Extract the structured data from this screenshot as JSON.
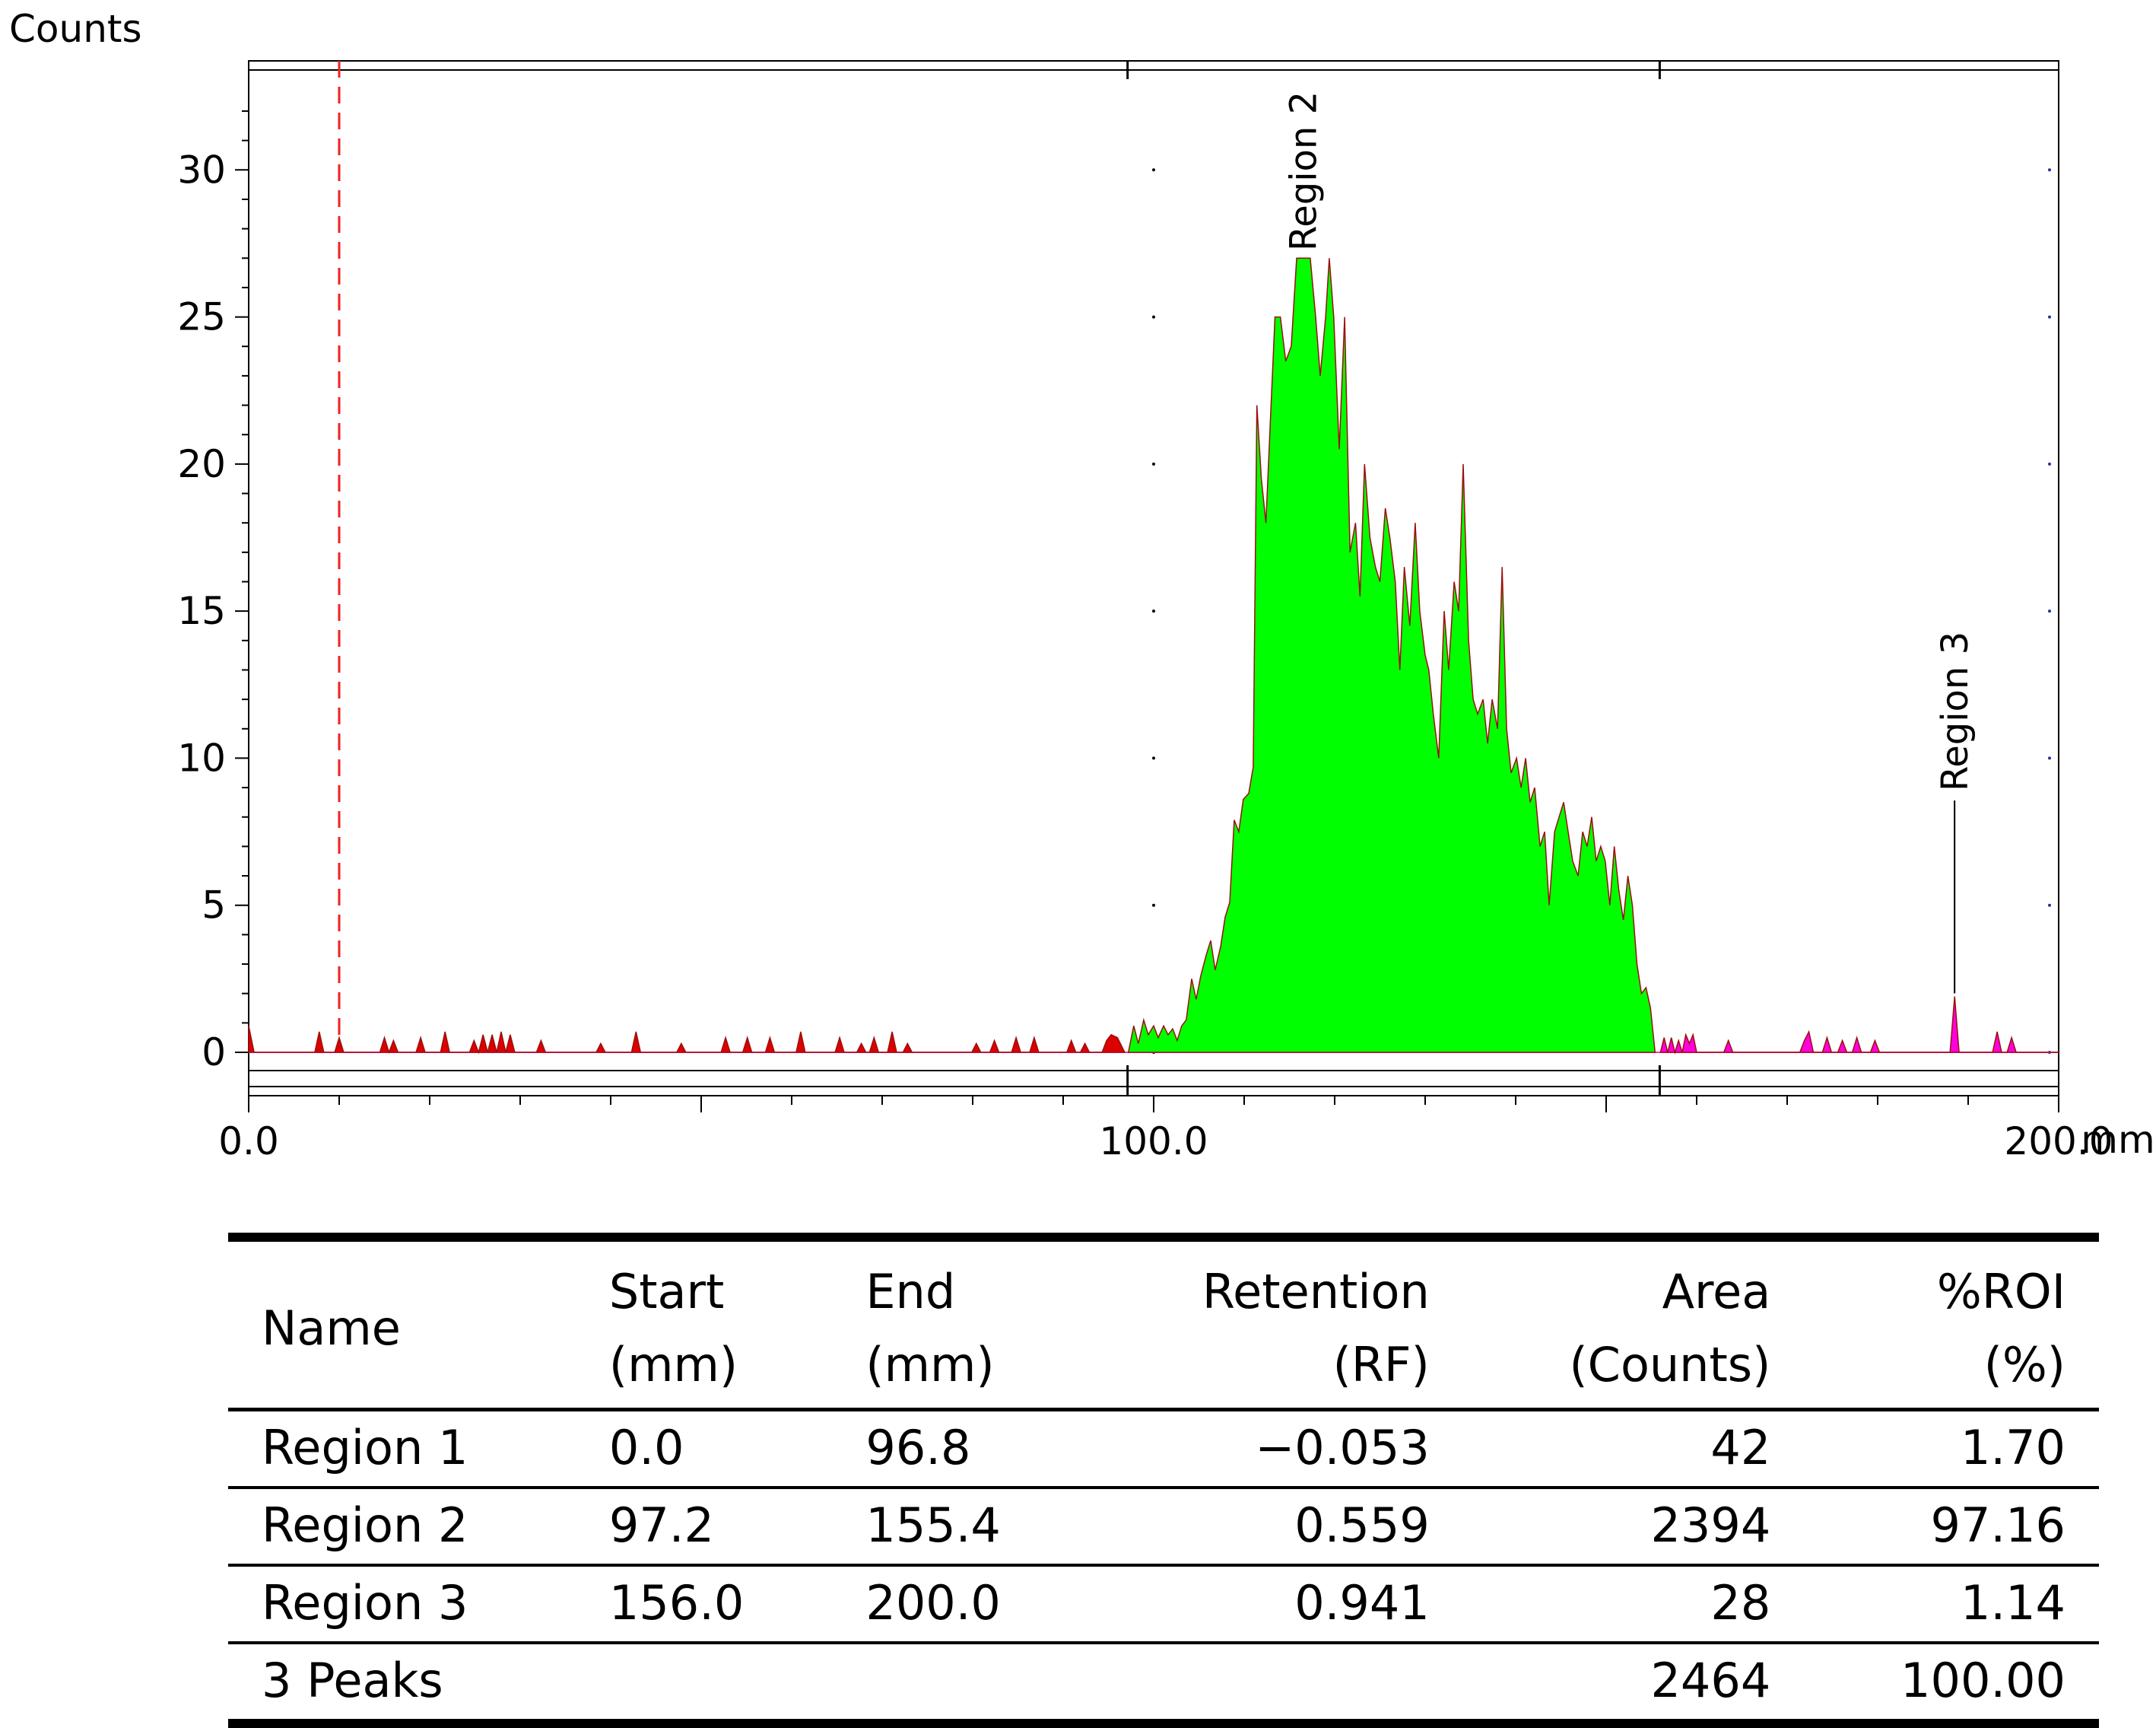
{
  "chart_data": {
    "type": "area",
    "ylabel": "Counts",
    "xunit": "mm",
    "xlim": [
      0,
      200
    ],
    "ylim": [
      0,
      33.5
    ],
    "x_ticks": [
      {
        "value": 0,
        "label": "0.0"
      },
      {
        "value": 100,
        "label": "100.0"
      },
      {
        "value": 200,
        "label": "200.0"
      }
    ],
    "y_ticks": [
      0,
      5,
      10,
      15,
      20,
      25,
      30
    ],
    "origin_marker_x": 10,
    "regions": [
      {
        "name": "Region 1",
        "start": 0.0,
        "end": 96.8,
        "color": "#dd0000",
        "label": ""
      },
      {
        "name": "Region 2",
        "start": 97.2,
        "end": 155.4,
        "color": "#00ff00",
        "label": "Region 2",
        "label_at": 116.5
      },
      {
        "name": "Region 3",
        "start": 156.0,
        "end": 200.0,
        "color": "#ff00dd",
        "label": "Region 3",
        "label_at": 188.5
      }
    ],
    "series": [
      {
        "region": "Region 1",
        "points": [
          [
            0,
            0.9
          ],
          [
            0.6,
            0
          ],
          [
            7.3,
            0
          ],
          [
            7.8,
            0.7
          ],
          [
            8.3,
            0
          ],
          [
            9.5,
            0
          ],
          [
            10,
            0.5
          ],
          [
            10.5,
            0
          ],
          [
            14.5,
            0
          ],
          [
            15,
            0.5
          ],
          [
            15.5,
            0
          ],
          [
            16,
            0.4
          ],
          [
            16.5,
            0
          ],
          [
            18.5,
            0
          ],
          [
            19,
            0.5
          ],
          [
            19.5,
            0
          ],
          [
            21.2,
            0
          ],
          [
            21.7,
            0.7
          ],
          [
            22.2,
            0
          ],
          [
            24.4,
            0
          ],
          [
            24.9,
            0.4
          ],
          [
            25.4,
            0
          ],
          [
            25.9,
            0.6
          ],
          [
            26.4,
            0
          ],
          [
            26.9,
            0.6
          ],
          [
            27.4,
            0
          ],
          [
            27.9,
            0.7
          ],
          [
            28.4,
            0
          ],
          [
            28.9,
            0.6
          ],
          [
            29.4,
            0
          ],
          [
            31.8,
            0
          ],
          [
            32.3,
            0.4
          ],
          [
            32.8,
            0
          ],
          [
            38.4,
            0
          ],
          [
            38.9,
            0.3
          ],
          [
            39.4,
            0
          ],
          [
            42.3,
            0
          ],
          [
            42.8,
            0.7
          ],
          [
            43.3,
            0
          ],
          [
            47.3,
            0
          ],
          [
            47.8,
            0.3
          ],
          [
            48.3,
            0
          ],
          [
            52.2,
            0
          ],
          [
            52.7,
            0.5
          ],
          [
            53.2,
            0
          ],
          [
            54.6,
            0
          ],
          [
            55.1,
            0.5
          ],
          [
            55.6,
            0
          ],
          [
            57.1,
            0
          ],
          [
            57.6,
            0.5
          ],
          [
            58.1,
            0
          ],
          [
            60.5,
            0
          ],
          [
            61,
            0.7
          ],
          [
            61.5,
            0
          ],
          [
            64.8,
            0
          ],
          [
            65.3,
            0.5
          ],
          [
            65.8,
            0
          ],
          [
            67.2,
            0
          ],
          [
            67.7,
            0.3
          ],
          [
            68.2,
            0
          ],
          [
            68.6,
            0
          ],
          [
            69.1,
            0.5
          ],
          [
            69.6,
            0
          ],
          [
            70.6,
            0
          ],
          [
            71.1,
            0.7
          ],
          [
            71.6,
            0
          ],
          [
            72.3,
            0
          ],
          [
            72.8,
            0.3
          ],
          [
            73.3,
            0
          ],
          [
            79.9,
            0
          ],
          [
            80.4,
            0.3
          ],
          [
            80.9,
            0
          ],
          [
            81.9,
            0
          ],
          [
            82.4,
            0.4
          ],
          [
            82.9,
            0
          ],
          [
            84.3,
            0
          ],
          [
            84.8,
            0.5
          ],
          [
            85.3,
            0
          ],
          [
            86.3,
            0
          ],
          [
            86.8,
            0.5
          ],
          [
            87.3,
            0
          ],
          [
            90.4,
            0
          ],
          [
            90.9,
            0.4
          ],
          [
            91.4,
            0
          ],
          [
            91.9,
            0
          ],
          [
            92.4,
            0.3
          ],
          [
            92.9,
            0
          ],
          [
            94.3,
            0
          ],
          [
            94.8,
            0.4
          ],
          [
            95.3,
            0.6
          ],
          [
            96,
            0.5
          ],
          [
            96.8,
            0
          ]
        ]
      },
      {
        "region": "Region 2",
        "points": [
          [
            97.2,
            0
          ],
          [
            97.8,
            0.9
          ],
          [
            98.3,
            0.3
          ],
          [
            98.9,
            1.1
          ],
          [
            99.4,
            0.6
          ],
          [
            100,
            0.9
          ],
          [
            100.5,
            0.5
          ],
          [
            101.1,
            0.9
          ],
          [
            101.6,
            0.6
          ],
          [
            102.1,
            0.8
          ],
          [
            102.6,
            0.4
          ],
          [
            103.1,
            0.9
          ],
          [
            103.6,
            1.1
          ],
          [
            104.2,
            2.5
          ],
          [
            104.7,
            1.8
          ],
          [
            105.2,
            2.6
          ],
          [
            105.8,
            3.3
          ],
          [
            106.3,
            3.8
          ],
          [
            106.8,
            2.8
          ],
          [
            107.4,
            3.6
          ],
          [
            107.9,
            4.6
          ],
          [
            108.4,
            5.1
          ],
          [
            108.9,
            7.9
          ],
          [
            109.4,
            7.5
          ],
          [
            109.9,
            8.6
          ],
          [
            110.5,
            8.8
          ],
          [
            111,
            9.7
          ],
          [
            111.4,
            22.0
          ],
          [
            111.9,
            19.5
          ],
          [
            112.4,
            18.0
          ],
          [
            112.9,
            21.5
          ],
          [
            113.4,
            25.0
          ],
          [
            114,
            25.0
          ],
          [
            114.6,
            23.5
          ],
          [
            115.2,
            24.0
          ],
          [
            115.8,
            27.0
          ],
          [
            116.5,
            27.0
          ],
          [
            117.3,
            27.0
          ],
          [
            117.9,
            25.0
          ],
          [
            118.4,
            23.0
          ],
          [
            119,
            25.0
          ],
          [
            119.4,
            27.0
          ],
          [
            119.9,
            25.0
          ],
          [
            120.5,
            20.5
          ],
          [
            121.1,
            25.0
          ],
          [
            121.7,
            17.0
          ],
          [
            122.3,
            18.0
          ],
          [
            122.8,
            15.5
          ],
          [
            123.3,
            20.0
          ],
          [
            123.9,
            17.5
          ],
          [
            124.5,
            16.5
          ],
          [
            125,
            16.0
          ],
          [
            125.6,
            18.5
          ],
          [
            126.1,
            17.5
          ],
          [
            126.7,
            16.0
          ],
          [
            127.2,
            13.0
          ],
          [
            127.7,
            16.5
          ],
          [
            128.3,
            14.5
          ],
          [
            128.9,
            18.0
          ],
          [
            129.4,
            15.0
          ],
          [
            130.0,
            13.5
          ],
          [
            130.4,
            13.0
          ],
          [
            130.9,
            11.5
          ],
          [
            131.5,
            10.0
          ],
          [
            132.1,
            15.0
          ],
          [
            132.6,
            13.0
          ],
          [
            133.2,
            16.0
          ],
          [
            133.7,
            15.0
          ],
          [
            134.2,
            20.0
          ],
          [
            134.8,
            14.0
          ],
          [
            135.3,
            12.0
          ],
          [
            135.8,
            11.5
          ],
          [
            136.4,
            12.0
          ],
          [
            136.9,
            10.5
          ],
          [
            137.4,
            12.0
          ],
          [
            138,
            11.0
          ],
          [
            138.5,
            16.5
          ],
          [
            139,
            11.0
          ],
          [
            139.5,
            9.5
          ],
          [
            140.1,
            10.0
          ],
          [
            140.6,
            9.0
          ],
          [
            141.1,
            10.0
          ],
          [
            141.6,
            8.5
          ],
          [
            142.1,
            9.0
          ],
          [
            142.7,
            7.0
          ],
          [
            143.2,
            7.5
          ],
          [
            143.7,
            5.0
          ],
          [
            144.3,
            7.5
          ],
          [
            144.8,
            8.0
          ],
          [
            145.3,
            8.5
          ],
          [
            145.8,
            7.5
          ],
          [
            146.3,
            6.5
          ],
          [
            146.9,
            6.0
          ],
          [
            147.4,
            7.5
          ],
          [
            147.9,
            7.0
          ],
          [
            148.4,
            8.0
          ],
          [
            148.9,
            6.5
          ],
          [
            149.4,
            7.0
          ],
          [
            149.9,
            6.5
          ],
          [
            150.4,
            5.0
          ],
          [
            150.9,
            7.0
          ],
          [
            151.4,
            5.5
          ],
          [
            151.9,
            4.5
          ],
          [
            152.4,
            6.0
          ],
          [
            152.9,
            5.0
          ],
          [
            153.4,
            3.0
          ],
          [
            153.9,
            2.0
          ],
          [
            154.4,
            2.2
          ],
          [
            154.9,
            1.5
          ],
          [
            155.4,
            0
          ]
        ]
      },
      {
        "region": "Region 3",
        "points": [
          [
            156,
            0
          ],
          [
            156.4,
            0.5
          ],
          [
            156.8,
            0
          ],
          [
            157.2,
            0.5
          ],
          [
            157.6,
            0
          ],
          [
            158,
            0.4
          ],
          [
            158.4,
            0
          ],
          [
            158.8,
            0.6
          ],
          [
            159.2,
            0.3
          ],
          [
            159.6,
            0.6
          ],
          [
            160,
            0
          ],
          [
            163,
            0
          ],
          [
            163.5,
            0.4
          ],
          [
            164,
            0
          ],
          [
            171.4,
            0
          ],
          [
            171.9,
            0.4
          ],
          [
            172.4,
            0.7
          ],
          [
            172.9,
            0
          ],
          [
            173.9,
            0
          ],
          [
            174.4,
            0.5
          ],
          [
            174.9,
            0
          ],
          [
            175.6,
            0
          ],
          [
            176.1,
            0.4
          ],
          [
            176.6,
            0
          ],
          [
            177.2,
            0
          ],
          [
            177.7,
            0.5
          ],
          [
            178.2,
            0
          ],
          [
            179.2,
            0
          ],
          [
            179.7,
            0.4
          ],
          [
            180.2,
            0
          ],
          [
            188,
            0
          ],
          [
            188.5,
            1.9
          ],
          [
            189,
            0
          ],
          [
            192.7,
            0
          ],
          [
            193.2,
            0.7
          ],
          [
            193.7,
            0
          ],
          [
            194.3,
            0
          ],
          [
            194.8,
            0.5
          ],
          [
            195.3,
            0
          ],
          [
            200,
            0
          ]
        ]
      }
    ]
  },
  "table": {
    "headers": [
      {
        "line1": "Name",
        "line2": ""
      },
      {
        "line1": "Start",
        "line2": "(mm)"
      },
      {
        "line1": "End",
        "line2": "(mm)"
      },
      {
        "line1": "Retention",
        "line2": "(RF)"
      },
      {
        "line1": "Area",
        "line2": "(Counts)"
      },
      {
        "line1": "%ROI",
        "line2": "(%)"
      }
    ],
    "rows": [
      {
        "name": "Region 1",
        "start": "0.0",
        "end": "96.8",
        "rf": "−0.053",
        "area": "42",
        "roi": "1.70"
      },
      {
        "name": "Region 2",
        "start": "97.2",
        "end": "155.4",
        "rf": "0.559",
        "area": "2394",
        "roi": "97.16"
      },
      {
        "name": "Region 3",
        "start": "156.0",
        "end": "200.0",
        "rf": "0.941",
        "area": "28",
        "roi": "1.14"
      }
    ],
    "total": {
      "name": "3 Peaks",
      "area": "2464",
      "roi": "100.00"
    }
  }
}
